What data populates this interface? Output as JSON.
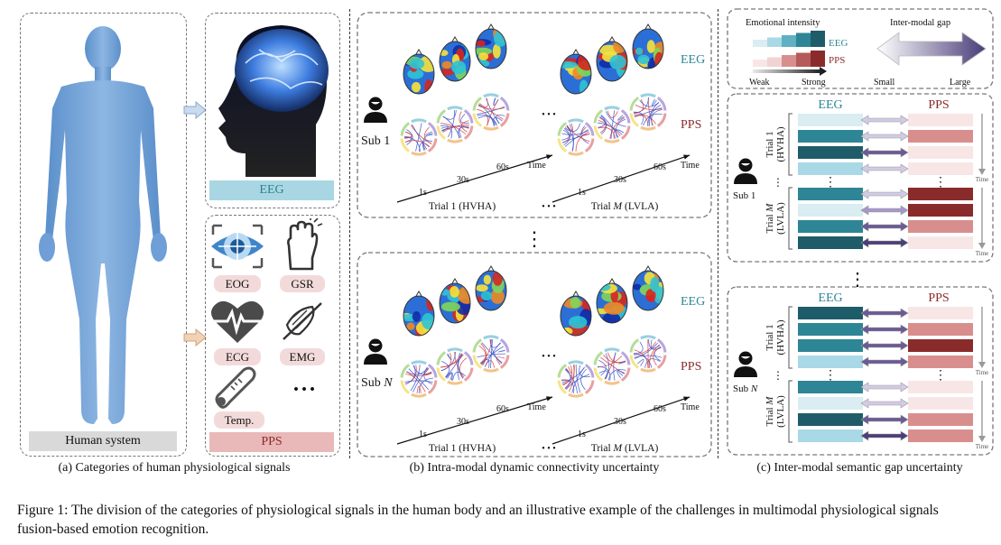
{
  "colors": {
    "eeg_teal": "#2e8596",
    "eeg_dark": "#1f5c6a",
    "eeg_light": "#a9d8e6",
    "eeg_pale": "#d9edf2",
    "pps_dark": "#8a2b2b",
    "pps_mid": "#d98e8e",
    "pps_light": "#f1d3d3",
    "pps_pale": "#f8e6e6",
    "body_blue": "#7aa6d8",
    "brain_glow": "#3e7de0",
    "eeg_label_bg": "#a8d7e3",
    "pps_label_bg": "#e9b8b8",
    "human_label_bg": "#d9d9d9",
    "arrow_purple": "#6b5a94"
  },
  "panel_a": {
    "eeg_label": "EEG",
    "pps_label": "PPS",
    "human_label": "Human system",
    "signals": [
      "EOG",
      "GSR",
      "ECG",
      "EMG",
      "Temp."
    ],
    "ellipsis": "• • •",
    "caption": "(a) Categories of human physiological signals"
  },
  "panel_b": {
    "caption": "(b) Intra-modal dynamic connectivity uncertainty",
    "eeg": "EEG",
    "pps": "PPS",
    "sub1": "Sub 1",
    "subN_prefix": "Sub ",
    "subN_var": "N",
    "dots": "• • •",
    "vdots": "⋮",
    "time": "Time",
    "t1": "1s",
    "t30": "30s",
    "t60": "60s",
    "trial1": "Trial 1 (HVHA)",
    "trialM_prefix": "Trial ",
    "trialM_var": "M",
    "trialM_suffix": " (LVLA)"
  },
  "panel_c": {
    "caption": "(c) Inter-modal semantic gap uncertainty",
    "legend_intensity": "Emotional intensity",
    "legend_gap": "Inter-modal gap",
    "legend_eeg": "EEG",
    "legend_pps": "PPS",
    "weak": "Weak",
    "strong": "Strong",
    "small": "Small",
    "large": "Large",
    "eeg": "EEG",
    "pps": "PPS",
    "sub1": "Sub 1",
    "subN_prefix": "Sub ",
    "subN_var": "N",
    "trial1_a": "Trial 1",
    "trial1_b": "(HVHA)",
    "trialM_a": "Trial ",
    "trialM_var": "M",
    "trialM_b": "(LVLA)",
    "time": "Time",
    "vdots": "⋮"
  },
  "figure_caption": {
    "line1": "Figure 1: The division of the categories of physiological signals in the human body and an illustrative example of the challenges in multimodal physiological signals",
    "line2": "fusion-based emotion recognition."
  }
}
